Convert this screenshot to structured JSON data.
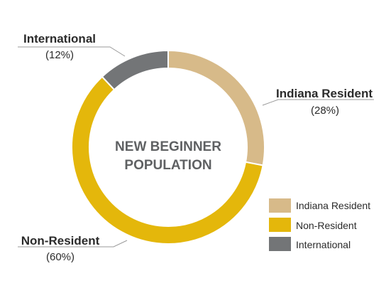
{
  "chart_data": {
    "type": "pie",
    "center_title": [
      "NEW BEGINNER",
      "POPULATION"
    ],
    "slices": [
      {
        "label": "Indiana Resident",
        "value": 28,
        "display": "(28%)",
        "color": "#d7ba89"
      },
      {
        "label": "Non-Resident",
        "value": 60,
        "display": "(60%)",
        "color": "#e4b70b"
      },
      {
        "label": "International",
        "value": 12,
        "display": "(12%)",
        "color": "#737577"
      }
    ],
    "legend": {
      "position": "bottom-right",
      "items": [
        "Indiana Resident",
        "Non-Resident",
        "International"
      ]
    },
    "leader_line_color": "#9a9a9a"
  }
}
